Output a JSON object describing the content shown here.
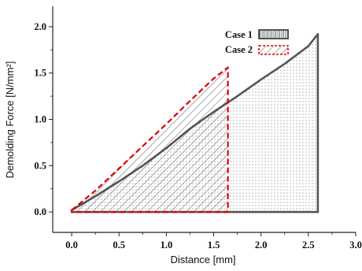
{
  "chart_data": {
    "type": "area",
    "xlabel": "Distance [mm]",
    "ylabel": "Demolding Force [N/mm²]",
    "xlim": [
      -0.2,
      3.0
    ],
    "ylim": [
      -0.22,
      2.22
    ],
    "x_ticks": [
      "0.0",
      "0.5",
      "1.0",
      "1.5",
      "2.0",
      "2.5",
      "3.0"
    ],
    "y_ticks": [
      "0.0",
      "0.5",
      "1.0",
      "1.5",
      "2.0"
    ],
    "grid": false,
    "legend_position": "top-right",
    "series": [
      {
        "name": "Case 1",
        "color": "#555555",
        "fill": "dotted",
        "x": [
          0.0,
          0.25,
          0.5,
          0.75,
          1.0,
          1.25,
          1.5,
          1.75,
          2.0,
          2.25,
          2.5,
          2.6,
          2.6,
          0.0
        ],
        "y": [
          0.02,
          0.17,
          0.33,
          0.5,
          0.69,
          0.9,
          1.08,
          1.25,
          1.43,
          1.6,
          1.79,
          1.92,
          0.0,
          0.0
        ]
      },
      {
        "name": "Case 2",
        "color": "#e00000",
        "fill": "hatched",
        "x": [
          0.0,
          0.25,
          0.5,
          0.75,
          1.0,
          1.25,
          1.5,
          1.65,
          1.65,
          0.0
        ],
        "y": [
          0.02,
          0.23,
          0.47,
          0.71,
          0.95,
          1.2,
          1.44,
          1.56,
          0.0,
          0.0
        ]
      }
    ]
  }
}
